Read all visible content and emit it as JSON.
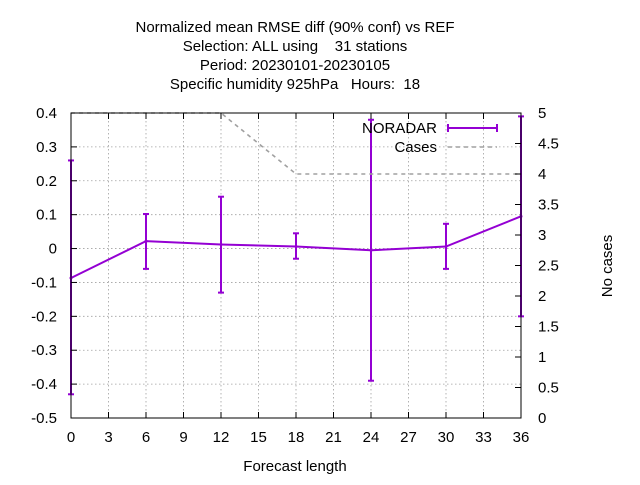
{
  "chart_data": {
    "type": "line",
    "title_lines": [
      "Normalized mean RMSE diff (90% conf) vs REF",
      "Selection: ALL using    31 stations",
      "Period: 20230101-20230105",
      "Specific humidity 925hPa   Hours:  18"
    ],
    "xlabel": "Forecast length",
    "ylabel": "",
    "y2label": "No cases",
    "xlim": [
      0,
      36
    ],
    "ylim": [
      -0.5,
      0.4
    ],
    "y2lim": [
      0,
      5
    ],
    "x_ticks": [
      "0",
      "3",
      "6",
      "9",
      "12",
      "15",
      "18",
      "21",
      "24",
      "27",
      "30",
      "33",
      "36"
    ],
    "y_ticks": [
      "-0.5",
      "-0.4",
      "-0.3",
      "-0.2",
      "-0.1",
      "0",
      "0.1",
      "0.2",
      "0.3",
      "0.4"
    ],
    "y2_ticks": [
      "0",
      "0.5",
      "1",
      "1.5",
      "2",
      "2.5",
      "3",
      "3.5",
      "4",
      "4.5",
      "5"
    ],
    "grid": true,
    "legend_position": "top-right",
    "series": [
      {
        "name": "NORADAR",
        "color": "#9400d3",
        "style": "line-with-errorbars",
        "axis": "left",
        "x": [
          0,
          6,
          12,
          18,
          24,
          30,
          36
        ],
        "y": [
          -0.087,
          0.022,
          0.012,
          0.006,
          -0.005,
          0.006,
          0.095
        ],
        "err_low": [
          -0.43,
          -0.06,
          -0.13,
          -0.03,
          -0.39,
          -0.06,
          -0.2
        ],
        "err_high": [
          0.26,
          0.102,
          0.153,
          0.045,
          0.38,
          0.073,
          0.39
        ]
      },
      {
        "name": "Cases",
        "color": "#a0a0a0",
        "style": "dashed",
        "axis": "right",
        "x": [
          0,
          6,
          12,
          18,
          24,
          30,
          36
        ],
        "y": [
          5,
          5,
          5,
          4,
          4,
          4,
          4
        ]
      }
    ]
  }
}
